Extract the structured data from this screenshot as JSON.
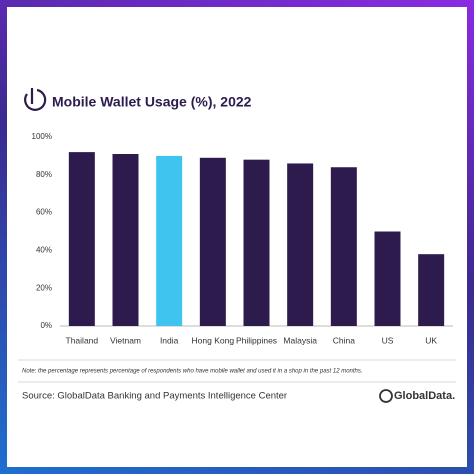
{
  "chart_data": {
    "type": "bar",
    "title": "Mobile Wallet Usage (%), 2022",
    "categories": [
      "Thailand",
      "Vietnam",
      "India",
      "Hong Kong",
      "Philippines",
      "Malaysia",
      "China",
      "US",
      "UK"
    ],
    "values": [
      92,
      91,
      90,
      89,
      88,
      86,
      84,
      50,
      38
    ],
    "colors": [
      "#2d1b4e",
      "#2d1b4e",
      "#3fc4f0",
      "#2d1b4e",
      "#2d1b4e",
      "#2d1b4e",
      "#2d1b4e",
      "#2d1b4e",
      "#2d1b4e"
    ],
    "ylim": [
      0,
      100
    ],
    "yticks": [
      {
        "value": 0,
        "label": "0%"
      },
      {
        "value": 20,
        "label": "20%"
      },
      {
        "value": 40,
        "label": "40%"
      },
      {
        "value": 60,
        "label": "60%"
      },
      {
        "value": 80,
        "label": "80%"
      },
      {
        "value": 100,
        "label": "100%"
      }
    ],
    "grid": false,
    "note": "Note: the percentage represents percentage of respondents who have mobile wallet and used it in a shop in the past 12 months.",
    "source": "Source: GlobalData Banking and Payments Intelligence Center",
    "logo": "GlobalData."
  }
}
